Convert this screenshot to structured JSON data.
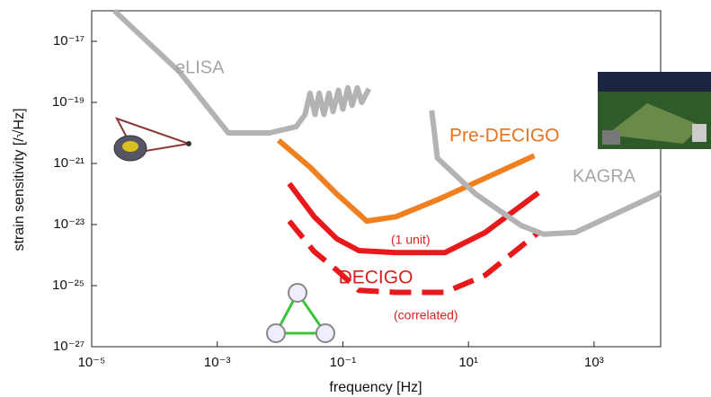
{
  "chart_data": {
    "type": "line",
    "xscale": "log",
    "yscale": "log",
    "xlabel": "frequency [Hz]",
    "ylabel": "strain sensitivity [/√Hz]",
    "xlim": [
      1e-05,
      11500
    ],
    "ylim": [
      1e-27,
      1e-16
    ],
    "xticks": [
      {
        "value": 1e-05,
        "label": "10⁻⁵"
      },
      {
        "value": 0.001,
        "label": "10⁻³"
      },
      {
        "value": 0.1,
        "label": "10⁻¹"
      },
      {
        "value": 10,
        "label": "10¹"
      },
      {
        "value": 1000,
        "label": "10³"
      }
    ],
    "yticks": [
      {
        "value": 1e-27,
        "label": "10⁻²⁷"
      },
      {
        "value": 1e-25,
        "label": "10⁻²⁵"
      },
      {
        "value": 1e-23,
        "label": "10⁻²³"
      },
      {
        "value": 1e-21,
        "label": "10⁻²¹"
      },
      {
        "value": 1e-19,
        "label": "10⁻¹⁹"
      },
      {
        "value": 1e-17,
        "label": "10⁻¹⁷"
      }
    ],
    "annotations": [
      "DECIGO"
    ],
    "series": [
      {
        "name": "eLISA",
        "color": "#b3b3b3",
        "dashed": false,
        "x": [
          2.3e-05,
          0.00025,
          0.0015,
          0.0068,
          0.018,
          0.025,
          0.03,
          0.036,
          0.042,
          0.05,
          0.06,
          0.07,
          0.085,
          0.1,
          0.12,
          0.14,
          0.17,
          0.2,
          0.26
        ],
        "values": [
          1e-16,
          1e-18,
          1e-20,
          1e-20,
          1.6e-20,
          4e-20,
          2e-19,
          4e-20,
          2e-19,
          4e-20,
          2e-19,
          5e-20,
          2.5e-19,
          6e-20,
          3e-19,
          8e-20,
          3e-19,
          1e-19,
          2.8e-19
        ]
      },
      {
        "name": "Pre-DECIGO",
        "color": "#f07f1f",
        "dashed": false,
        "x": [
          0.0095,
          0.03,
          0.08,
          0.24,
          0.7,
          3.5,
          112
        ],
        "values": [
          5.7e-21,
          7.6e-22,
          1e-22,
          1.3e-23,
          1.8e-23,
          7e-23,
          1.8e-21
        ]
      },
      {
        "name": "(1 unit)",
        "color": "#e8191b",
        "dashed": false,
        "x": [
          0.014,
          0.035,
          0.08,
          0.18,
          0.7,
          4.2,
          18.5,
          130
        ],
        "values": [
          2.2e-22,
          1.8e-23,
          3.4e-24,
          1.4e-24,
          1.2e-24,
          1.2e-24,
          5.5e-24,
          1.1e-22
        ]
      },
      {
        "name": "(correlated)",
        "color": "#e8191b",
        "dashed": true,
        "x": [
          0.014,
          0.035,
          0.08,
          0.18,
          0.7,
          4.2,
          18.5,
          130
        ],
        "values": [
          1.3e-23,
          1.3e-24,
          3.2e-25,
          7e-26,
          6e-26,
          6e-26,
          2.2e-25,
          5.5e-24
        ]
      },
      {
        "name": "KAGRA",
        "color": "#b3b3b3",
        "dashed": false,
        "x": [
          2.6,
          3.2,
          13,
          69,
          158,
          500,
          2570,
          11500
        ],
        "values": [
          5.5e-20,
          1.5e-21,
          1e-22,
          9.3e-24,
          4.8e-24,
          5.5e-24,
          2.6e-23,
          1.1e-22
        ]
      }
    ]
  }
}
